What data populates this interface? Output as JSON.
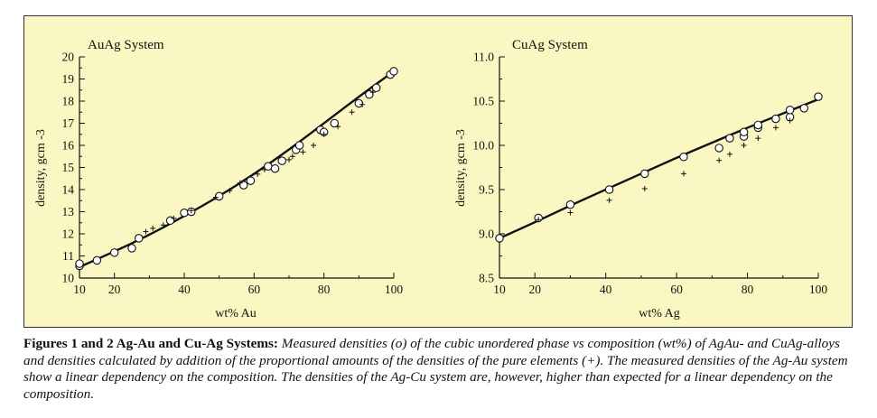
{
  "chart_data": [
    {
      "type": "scatter",
      "title": "AuAg System",
      "xlabel": "wt% Au",
      "ylabel": "density, gcm -3",
      "xlim": [
        10,
        100
      ],
      "ylim": [
        10,
        20
      ],
      "xticks": [
        "10",
        "20",
        "40",
        "60",
        "80",
        "100"
      ],
      "yticks": [
        "10",
        "11",
        "12",
        "13",
        "14",
        "15",
        "16",
        "17",
        "18",
        "19",
        "20"
      ],
      "curve": {
        "x": [
          10,
          20,
          30,
          40,
          50,
          60,
          70,
          80,
          90,
          100
        ],
        "y": [
          10.5,
          11.2,
          11.95,
          12.8,
          13.7,
          14.7,
          15.8,
          17.0,
          18.2,
          19.35
        ]
      },
      "series": [
        {
          "marker": "o",
          "x": [
            10,
            10,
            15,
            20,
            25,
            27,
            36,
            40,
            42,
            50,
            57,
            59,
            64,
            66,
            68,
            72,
            73,
            79,
            80,
            83,
            90,
            93,
            95,
            99,
            100
          ],
          "y": [
            10.55,
            10.65,
            10.8,
            11.15,
            11.35,
            11.8,
            12.6,
            12.95,
            13.0,
            13.7,
            14.2,
            14.4,
            15.05,
            14.95,
            15.3,
            15.8,
            16.0,
            16.7,
            16.6,
            17.0,
            17.9,
            18.3,
            18.6,
            19.2,
            19.35
          ]
        },
        {
          "marker": "+",
          "x": [
            29,
            31,
            34,
            37,
            42,
            49,
            53,
            56,
            61,
            63,
            70,
            71,
            74,
            77,
            80,
            84,
            88,
            91,
            94
          ],
          "y": [
            12.1,
            12.25,
            12.4,
            12.7,
            13.05,
            13.65,
            13.95,
            14.3,
            14.7,
            14.9,
            15.35,
            15.5,
            15.7,
            16.0,
            16.5,
            16.85,
            17.5,
            17.85,
            18.4
          ]
        }
      ]
    },
    {
      "type": "scatter",
      "title": "CuAg System",
      "xlabel": "wt% Ag",
      "ylabel": "density, gcm -3",
      "xlim": [
        10,
        100
      ],
      "ylim": [
        8.5,
        11.0
      ],
      "xticks": [
        "10",
        "20",
        "40",
        "60",
        "80",
        "100"
      ],
      "yticks": [
        "8.5",
        "9.0",
        "9.5",
        "10.0",
        "10.5",
        "11.0"
      ],
      "curve": {
        "x": [
          10,
          20,
          30,
          40,
          50,
          60,
          70,
          80,
          90,
          100
        ],
        "y": [
          8.95,
          9.13,
          9.32,
          9.5,
          9.68,
          9.86,
          10.03,
          10.2,
          10.36,
          10.52
        ]
      },
      "series": [
        {
          "marker": "o",
          "x": [
            10,
            21,
            30,
            41,
            51,
            62,
            72,
            75,
            79,
            79,
            83,
            83,
            88,
            92,
            92,
            96,
            100
          ],
          "y": [
            8.95,
            9.18,
            9.33,
            9.5,
            9.68,
            9.87,
            9.97,
            10.08,
            10.1,
            10.15,
            10.2,
            10.23,
            10.3,
            10.32,
            10.4,
            10.42,
            10.55
          ]
        },
        {
          "marker": "+",
          "x": [
            21,
            30,
            41,
            51,
            62,
            72,
            75,
            79,
            83,
            88,
            92
          ],
          "y": [
            9.16,
            9.24,
            9.38,
            9.51,
            9.68,
            9.83,
            9.9,
            10.0,
            10.08,
            10.2,
            10.28
          ]
        }
      ]
    }
  ],
  "caption": {
    "bold": "Figures 1 and 2 Ag-Au and Cu-Ag Systems:",
    "text": " Measured densities (o) of the cubic unordered phase vs composition (wt%) of AgAu- and CuAg-alloys and densities calculated by addition of the proportional amounts of the densities of the pure elements (+). The measured densities of the Ag-Au system show a linear dependency on the composition. The densities of the Ag-Cu system are, however, higher than expected for a linear dependency on the composition."
  }
}
